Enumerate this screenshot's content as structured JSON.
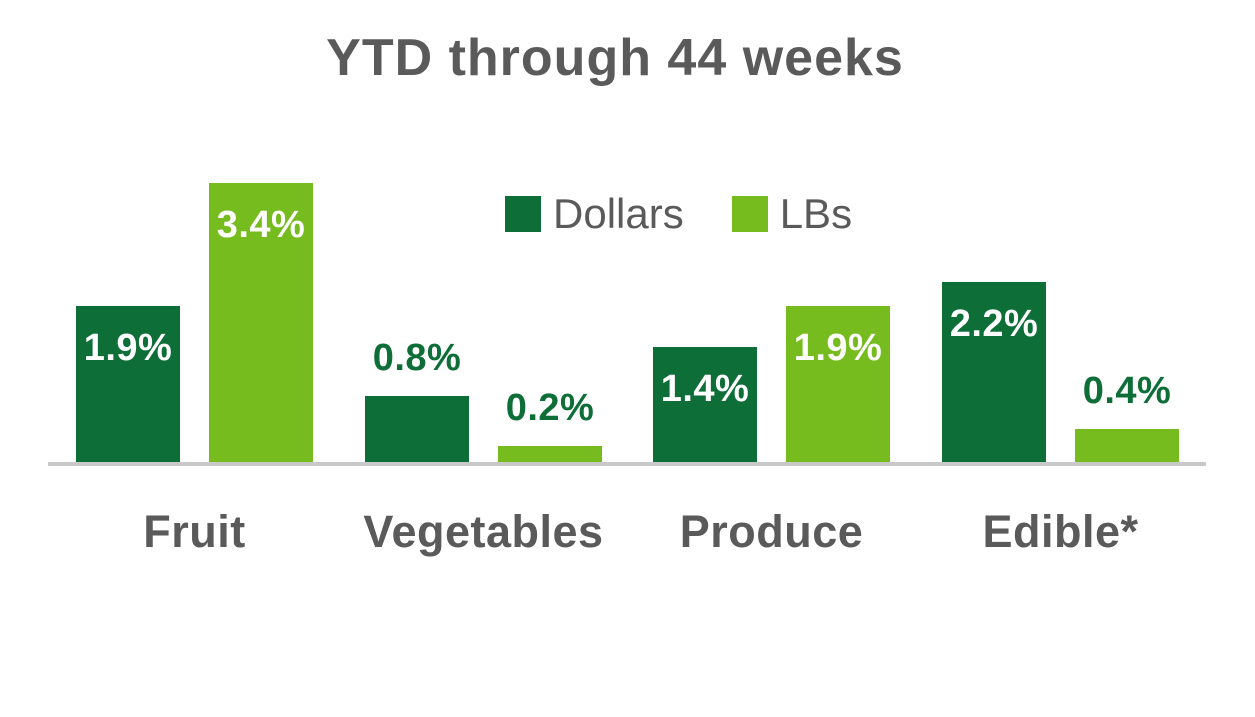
{
  "chart_data": {
    "type": "bar",
    "title": "YTD through 44 weeks",
    "categories": [
      "Fruit",
      "Vegetables",
      "Produce",
      "Edible*"
    ],
    "series": [
      {
        "name": "Dollars",
        "color": "#0d6e38",
        "values": [
          1.9,
          0.8,
          1.4,
          2.2
        ],
        "labels": [
          "1.9%",
          "0.8%",
          "1.4%",
          "2.2%"
        ]
      },
      {
        "name": "LBs",
        "color": "#77bc1f",
        "values": [
          3.4,
          0.2,
          1.9,
          0.4
        ],
        "labels": [
          "3.4%",
          "0.2%",
          "1.9%",
          "0.4%"
        ]
      }
    ],
    "xlabel": "",
    "ylabel": "",
    "ylim": [
      0,
      3.5
    ],
    "grid": false,
    "axis_visible": "x-baseline-only",
    "legend_position": "inside-top-center",
    "colors": {
      "title_text": "#5a5a5a",
      "category_text": "#5a5a5a",
      "legend_text": "#5a5a5a",
      "axis_line": "#c9c9c9",
      "value_label_inside": "#ffffff",
      "value_label_outside": "#0d6e38"
    }
  }
}
